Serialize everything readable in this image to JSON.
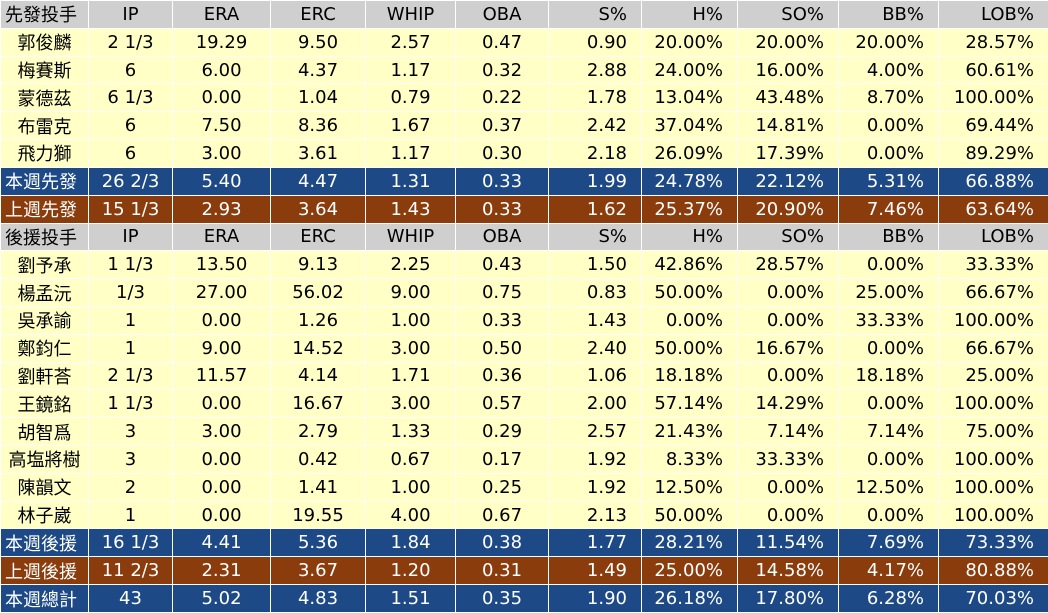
{
  "table": {
    "sections": [
      {
        "header": [
          "先發投手",
          "IP",
          "ERA",
          "ERC",
          "WHIP",
          "OBA",
          "S%",
          "H%",
          "SO%",
          "BB%",
          "LOB%"
        ],
        "rows": [
          [
            "郭俊麟",
            "2 1/3",
            "19.29",
            "9.50",
            "2.57",
            "0.47",
            "0.90",
            "20.00%",
            "20.00%",
            "20.00%",
            "28.57%"
          ],
          [
            "梅賽斯",
            "6",
            "6.00",
            "4.37",
            "1.17",
            "0.32",
            "2.88",
            "24.00%",
            "16.00%",
            "4.00%",
            "60.61%"
          ],
          [
            "蒙德茲",
            "6 1/3",
            "0.00",
            "1.04",
            "0.79",
            "0.22",
            "1.78",
            "13.04%",
            "43.48%",
            "8.70%",
            "100.00%"
          ],
          [
            "布雷克",
            "6",
            "7.50",
            "8.36",
            "1.67",
            "0.37",
            "2.42",
            "37.04%",
            "14.81%",
            "0.00%",
            "69.44%"
          ],
          [
            "飛力獅",
            "6",
            "3.00",
            "3.61",
            "1.17",
            "0.30",
            "2.18",
            "26.09%",
            "17.39%",
            "0.00%",
            "89.29%"
          ]
        ],
        "summaries": [
          [
            "本週先發",
            "26 2/3",
            "5.40",
            "4.47",
            "1.31",
            "0.33",
            "1.99",
            "24.78%",
            "22.12%",
            "5.31%",
            "66.88%"
          ],
          [
            "上週先發",
            "15 1/3",
            "2.93",
            "3.64",
            "1.43",
            "0.33",
            "1.62",
            "25.37%",
            "20.90%",
            "7.46%",
            "63.64%"
          ]
        ]
      },
      {
        "header": [
          "後援投手",
          "IP",
          "ERA",
          "ERC",
          "WHIP",
          "OBA",
          "S%",
          "H%",
          "SO%",
          "BB%",
          "LOB%"
        ],
        "rows": [
          [
            "劉予承",
            "1 1/3",
            "13.50",
            "9.13",
            "2.25",
            "0.43",
            "1.50",
            "42.86%",
            "28.57%",
            "0.00%",
            "33.33%"
          ],
          [
            "楊孟沅",
            "1/3",
            "27.00",
            "56.02",
            "9.00",
            "0.75",
            "0.83",
            "50.00%",
            "0.00%",
            "25.00%",
            "66.67%"
          ],
          [
            "吳承諭",
            "1",
            "0.00",
            "1.26",
            "1.00",
            "0.33",
            "1.43",
            "0.00%",
            "0.00%",
            "33.33%",
            "100.00%"
          ],
          [
            "鄭鈞仁",
            "1",
            "9.00",
            "14.52",
            "3.00",
            "0.50",
            "2.40",
            "50.00%",
            "16.67%",
            "0.00%",
            "66.67%"
          ],
          [
            "劉軒荅",
            "2 1/3",
            "11.57",
            "4.14",
            "1.71",
            "0.36",
            "1.06",
            "18.18%",
            "0.00%",
            "18.18%",
            "25.00%"
          ],
          [
            "王鏡銘",
            "1 1/3",
            "0.00",
            "16.67",
            "3.00",
            "0.57",
            "2.00",
            "57.14%",
            "14.29%",
            "0.00%",
            "100.00%"
          ],
          [
            "胡智爲",
            "3",
            "3.00",
            "2.79",
            "1.33",
            "0.29",
            "2.57",
            "21.43%",
            "7.14%",
            "7.14%",
            "75.00%"
          ],
          [
            "高塩將樹",
            "3",
            "0.00",
            "0.42",
            "0.67",
            "0.17",
            "1.92",
            "8.33%",
            "33.33%",
            "0.00%",
            "100.00%"
          ],
          [
            "陳韻文",
            "2",
            "0.00",
            "1.41",
            "1.00",
            "0.25",
            "1.92",
            "12.50%",
            "0.00%",
            "12.50%",
            "100.00%"
          ],
          [
            "林子崴",
            "1",
            "0.00",
            "19.55",
            "4.00",
            "0.67",
            "2.13",
            "50.00%",
            "0.00%",
            "0.00%",
            "100.00%"
          ]
        ],
        "summaries": [
          [
            "本週後援",
            "16 1/3",
            "4.41",
            "5.36",
            "1.84",
            "0.38",
            "1.77",
            "28.21%",
            "11.54%",
            "7.69%",
            "73.33%"
          ],
          [
            "上週後援",
            "11 2/3",
            "2.31",
            "3.67",
            "1.20",
            "0.31",
            "1.49",
            "25.00%",
            "14.58%",
            "4.17%",
            "80.88%"
          ]
        ]
      }
    ],
    "grand_total": [
      "本週總計",
      "43",
      "5.02",
      "4.83",
      "1.51",
      "0.35",
      "1.90",
      "26.18%",
      "17.80%",
      "6.28%",
      "70.03%"
    ]
  }
}
